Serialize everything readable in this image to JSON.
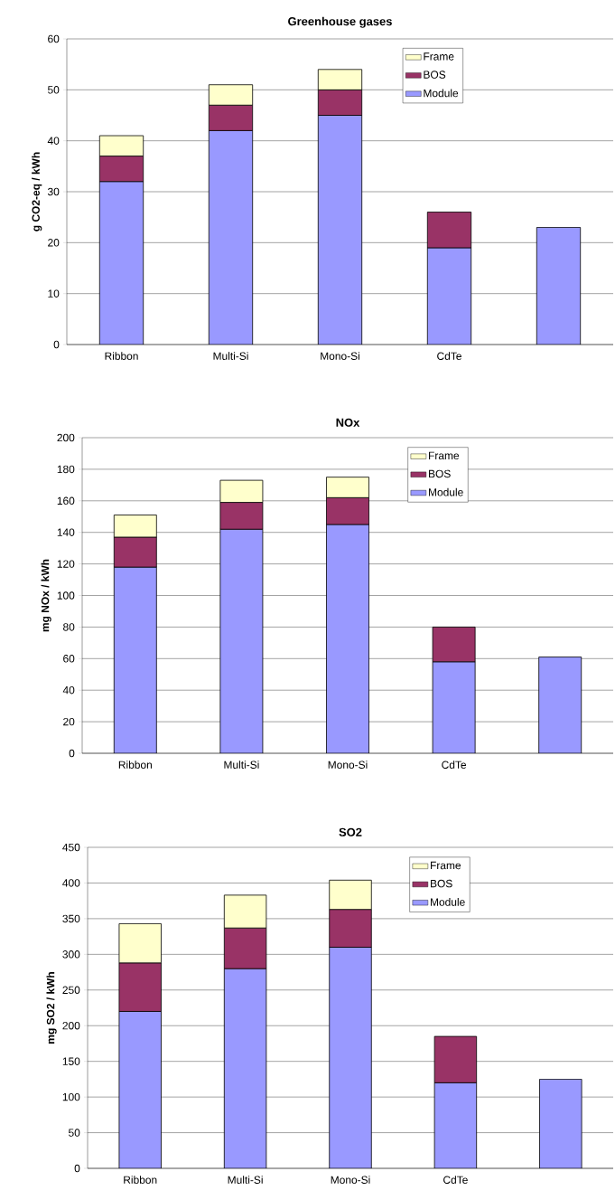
{
  "chart_data": [
    {
      "type": "bar",
      "stacked": true,
      "title": "Greenhouse gases",
      "ylabel": "g CO2-eq / kWh",
      "categories": [
        "Ribbon",
        "Multi-Si",
        "Mono-Si",
        "CdTe",
        null
      ],
      "ylim": [
        0,
        60
      ],
      "yticks": [
        0,
        10,
        20,
        30,
        40,
        50,
        60
      ],
      "grid": "y",
      "legend": "top right",
      "series": [
        {
          "name": "Module",
          "color": "#9999ff",
          "values": [
            32,
            42,
            45,
            19,
            23
          ]
        },
        {
          "name": "BOS",
          "color": "#993366",
          "values": [
            5,
            5,
            5,
            7,
            null
          ]
        },
        {
          "name": "Frame",
          "color": "#ffffcc",
          "values": [
            4,
            4,
            4,
            null,
            null
          ]
        }
      ]
    },
    {
      "type": "bar",
      "stacked": true,
      "title": "NOx",
      "ylabel": "mg NOx / kWh",
      "categories": [
        "Ribbon",
        "Multi-Si",
        "Mono-Si",
        "CdTe",
        null
      ],
      "ylim": [
        0,
        200
      ],
      "yticks": [
        0,
        20,
        40,
        60,
        80,
        100,
        120,
        140,
        160,
        180,
        200
      ],
      "grid": "y",
      "legend": "top right",
      "series": [
        {
          "name": "Module",
          "color": "#9999ff",
          "values": [
            118,
            142,
            145,
            58,
            61
          ]
        },
        {
          "name": "BOS",
          "color": "#993366",
          "values": [
            19,
            17,
            17,
            22,
            null
          ]
        },
        {
          "name": "Frame",
          "color": "#ffffcc",
          "values": [
            14,
            14,
            13,
            null,
            null
          ]
        }
      ]
    },
    {
      "type": "bar",
      "stacked": true,
      "title": "SO2",
      "ylabel": "mg SO2 / kWh",
      "categories": [
        "Ribbon",
        "Multi-Si",
        "Mono-Si",
        "CdTe",
        null
      ],
      "ylim": [
        0,
        450
      ],
      "yticks": [
        0,
        50,
        100,
        150,
        200,
        250,
        300,
        350,
        400,
        450
      ],
      "grid": "y",
      "legend": "top right",
      "series": [
        {
          "name": "Module",
          "color": "#9999ff",
          "values": [
            220,
            280,
            310,
            120,
            125
          ]
        },
        {
          "name": "BOS",
          "color": "#993366",
          "values": [
            68,
            57,
            53,
            65,
            null
          ]
        },
        {
          "name": "Frame",
          "color": "#ffffcc",
          "values": [
            55,
            46,
            41,
            null,
            null
          ]
        }
      ]
    }
  ]
}
